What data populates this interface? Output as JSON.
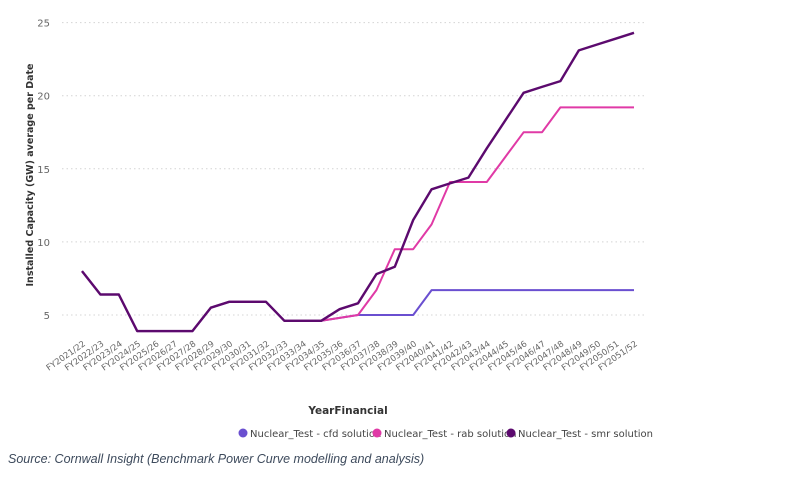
{
  "chart_data": {
    "type": "line",
    "title": "",
    "xlabel": "YearFinancial",
    "ylabel": "Installed Capacity (GW) average per Date",
    "ylim": [
      2,
      25.5
    ],
    "yticks": [
      5,
      10,
      15,
      20,
      25
    ],
    "grid": true,
    "legend_position": "bottom-right",
    "categories": [
      "FY2021/22",
      "FY2022/23",
      "FY2023/24",
      "FY2024/25",
      "FY2025/26",
      "FY2026/27",
      "FY2027/28",
      "FY2028/29",
      "FY2029/30",
      "FY2030/31",
      "FY2031/32",
      "FY2032/33",
      "FY2033/34",
      "FY2034/35",
      "FY2035/36",
      "FY2036/37",
      "FY2037/38",
      "FY2038/39",
      "FY2039/40",
      "FY2040/41",
      "FY2041/42",
      "FY2042/43",
      "FY2043/44",
      "FY2044/45",
      "FY2045/46",
      "FY2046/47",
      "FY2047/48",
      "FY2048/49",
      "FY2049/50",
      "FY2050/51",
      "FY2051/52"
    ],
    "series": [
      {
        "name": "Nuclear_Test - cfd solution",
        "color": "#6a4fd0",
        "values": [
          8.0,
          6.4,
          6.4,
          3.9,
          3.9,
          3.9,
          3.9,
          5.5,
          5.9,
          5.9,
          5.9,
          4.6,
          4.6,
          4.6,
          4.8,
          5.0,
          5.0,
          5.0,
          5.0,
          6.7,
          6.7,
          6.7,
          6.7,
          6.7,
          6.7,
          6.7,
          6.7,
          6.7,
          6.7,
          6.7,
          6.7
        ]
      },
      {
        "name": "Nuclear_Test - rab solution",
        "color": "#e03aa6",
        "values": [
          8.0,
          6.4,
          6.4,
          3.9,
          3.9,
          3.9,
          3.9,
          5.5,
          5.9,
          5.9,
          5.9,
          4.6,
          4.6,
          4.6,
          4.8,
          5.0,
          6.7,
          9.5,
          9.5,
          11.2,
          14.1,
          14.1,
          14.1,
          15.8,
          17.5,
          17.5,
          19.2,
          19.2,
          19.2,
          19.2,
          19.2
        ]
      },
      {
        "name": "Nuclear_Test - smr solution",
        "color": "#5c0a6e",
        "values": [
          8.0,
          6.4,
          6.4,
          3.9,
          3.9,
          3.9,
          3.9,
          5.5,
          5.9,
          5.9,
          5.9,
          4.6,
          4.6,
          4.6,
          5.4,
          5.8,
          7.8,
          8.3,
          11.5,
          13.6,
          14.0,
          14.4,
          16.4,
          18.3,
          20.2,
          20.6,
          21.0,
          23.1,
          23.5,
          23.9,
          24.3
        ]
      }
    ]
  },
  "source": "Source: Cornwall Insight (Benchmark Power Curve modelling and analysis)"
}
